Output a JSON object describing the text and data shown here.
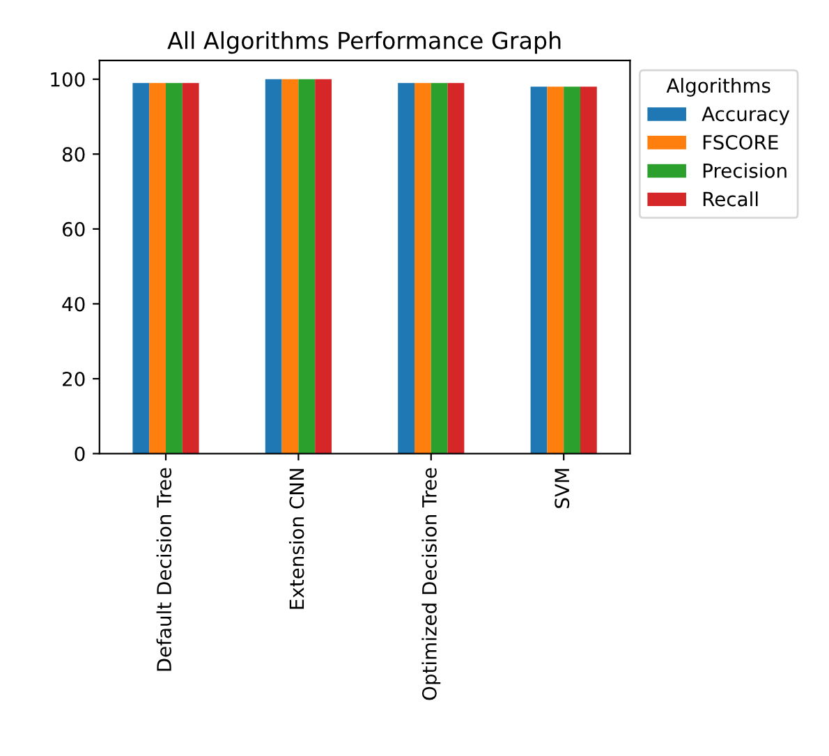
{
  "chart_data": {
    "type": "bar",
    "title": "All Algorithms Performance Graph",
    "categories": [
      "Default Decision Tree",
      "Extension CNN",
      "Optimized Decision Tree",
      "SVM"
    ],
    "series": [
      {
        "name": "Accuracy",
        "color": "#1f77b4",
        "values": [
          99,
          100,
          99,
          98
        ]
      },
      {
        "name": "FSCORE",
        "color": "#ff7f0e",
        "values": [
          99,
          100,
          99,
          98
        ]
      },
      {
        "name": "Precision",
        "color": "#2ca02c",
        "values": [
          99,
          100,
          99,
          98
        ]
      },
      {
        "name": "Recall",
        "color": "#d62728",
        "values": [
          99,
          100,
          99,
          98
        ]
      }
    ],
    "legend_title": "Algorithms",
    "legend": "top right",
    "ylim": [
      0,
      105
    ],
    "yticks": [
      0,
      20,
      40,
      60,
      80,
      100
    ],
    "grid": false
  }
}
